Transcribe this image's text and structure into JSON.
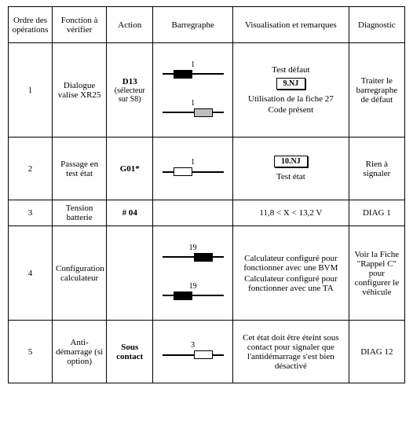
{
  "headers": {
    "c1": "Ordre des opérations",
    "c2": "Fonction à vérifier",
    "c3": "Action",
    "c4": "Barregraphe",
    "c5": "Visualisation et remarques",
    "c6": "Diagnostic"
  },
  "rows": [
    {
      "order": "1",
      "func": "Dialogue valise XR25",
      "action": "D13",
      "action_sub": "(sélecteur sur S8)",
      "bargraphs": [
        {
          "label": "1",
          "left": "short",
          "box": "filled",
          "right": "long"
        },
        {
          "label": "1",
          "left": "long",
          "box": "grey",
          "right": "short"
        }
      ],
      "vis": [
        {
          "type": "text",
          "value": "Test défaut"
        },
        {
          "type": "code",
          "value": "9.NJ"
        },
        {
          "type": "text",
          "value": "Utilisation de la fiche 27"
        },
        {
          "type": "text",
          "value": "Code présent"
        }
      ],
      "diag": "Traiter le barregraphe de défaut"
    },
    {
      "order": "2",
      "func": "Passage en test état",
      "action": "G01*",
      "action_sub": "",
      "bargraphs": [
        {
          "label": "1",
          "left": "short",
          "box": "empty",
          "right": "long"
        }
      ],
      "vis": [
        {
          "type": "code",
          "value": "10.NJ"
        },
        {
          "type": "text",
          "value": "Test état"
        }
      ],
      "diag": "Rien à signaler"
    },
    {
      "order": "3",
      "func": "Tension batterie",
      "action": "# 04",
      "action_sub": "",
      "bargraphs": [],
      "vis": [
        {
          "type": "text",
          "value": "11,8 < X < 13,2 V"
        }
      ],
      "diag": "DIAG 1"
    },
    {
      "order": "4",
      "func": "Configuration calculateur",
      "action": "",
      "action_sub": "",
      "bargraphs": [
        {
          "label": "19",
          "left": "long",
          "box": "filled",
          "right": "short"
        },
        {
          "label": "19",
          "left": "short",
          "box": "filled",
          "right": "long"
        }
      ],
      "vis": [
        {
          "type": "text",
          "value": "Calculateur configuré pour fonctionner avec une BVM"
        },
        {
          "type": "text",
          "value": "Calculateur configuré pour fonctionner avec une TA"
        }
      ],
      "diag": "Voir la Fiche \"Rappel C\" pour configurer le véhicule"
    },
    {
      "order": "5",
      "func": "Anti-démarrage (si option)",
      "action": "Sous contact",
      "action_sub": "",
      "bargraphs": [
        {
          "label": "3",
          "left": "long",
          "box": "empty",
          "right": "short"
        }
      ],
      "vis": [
        {
          "type": "text",
          "value": "Cet état doit être éteint sous contact pour signaler que l'antidémarrage s'est bien désactivé"
        }
      ],
      "diag": "DIAG 12"
    }
  ]
}
